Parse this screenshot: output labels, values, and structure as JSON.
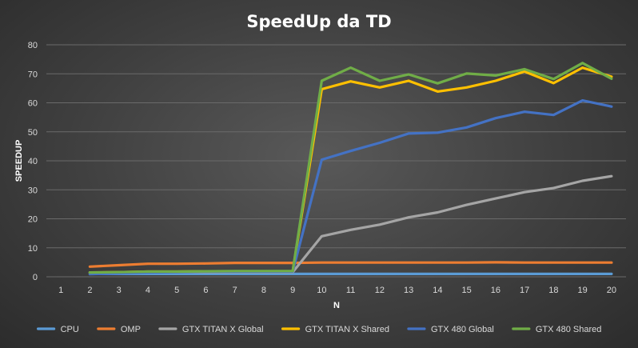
{
  "chart_data": {
    "type": "line",
    "title": "SpeedUp da TD",
    "xlabel": "N",
    "ylabel": "SPEEDUP",
    "categories": [
      "1",
      "2",
      "3",
      "4",
      "5",
      "6",
      "7",
      "8",
      "9",
      "10",
      "11",
      "12",
      "13",
      "14",
      "15",
      "16",
      "17",
      "18",
      "19",
      "20"
    ],
    "ylim": [
      0,
      80
    ],
    "yticks": [
      0,
      10,
      20,
      30,
      40,
      50,
      60,
      70,
      80
    ],
    "grid": true,
    "legend": "bottom",
    "series": [
      {
        "name": "CPU",
        "color": "#5b9bd5",
        "values": [
          null,
          1,
          1,
          1,
          1,
          1,
          1,
          1,
          1,
          1,
          1,
          1,
          1,
          1,
          1,
          1,
          1,
          1,
          1,
          1
        ]
      },
      {
        "name": "OMP",
        "color": "#ed7d31",
        "values": [
          null,
          3.5,
          4.0,
          4.5,
          4.5,
          4.6,
          4.8,
          4.8,
          4.8,
          4.9,
          4.9,
          4.9,
          4.9,
          4.9,
          4.9,
          5.0,
          4.9,
          4.9,
          4.9,
          4.9
        ]
      },
      {
        "name": "GTX TITAN X Global",
        "color": "#a5a5a5",
        "values": [
          null,
          1.5,
          1.5,
          1.6,
          1.6,
          1.6,
          1.6,
          1.6,
          1.6,
          14,
          16.2,
          18,
          20.5,
          22.2,
          24.8,
          27,
          29.2,
          30.6,
          33.1,
          34.7
        ]
      },
      {
        "name": "GTX TITAN X Shared",
        "color": "#ffc000",
        "values": [
          null,
          1.5,
          1.6,
          1.8,
          1.8,
          1.9,
          1.9,
          1.9,
          1.9,
          64.7,
          67.4,
          65.3,
          67.6,
          63.9,
          65.3,
          67.6,
          70.8,
          66.8,
          72.1,
          69
        ]
      },
      {
        "name": "GTX 480 Global",
        "color": "#4472c4",
        "values": [
          null,
          0.9,
          1.2,
          1.5,
          1.6,
          1.8,
          1.8,
          1.8,
          1.8,
          40.4,
          43.4,
          46.2,
          49.4,
          49.7,
          51.5,
          54.7,
          56.9,
          55.8,
          60.8,
          58.7
        ]
      },
      {
        "name": "GTX 480 Shared",
        "color": "#70ad47",
        "values": [
          null,
          1.5,
          1.6,
          1.8,
          1.8,
          1.9,
          2.0,
          2.0,
          2.0,
          67.6,
          72.1,
          67.6,
          69.8,
          66.7,
          70.1,
          69.4,
          71.6,
          68.2,
          73.7,
          68.3
        ]
      }
    ]
  }
}
